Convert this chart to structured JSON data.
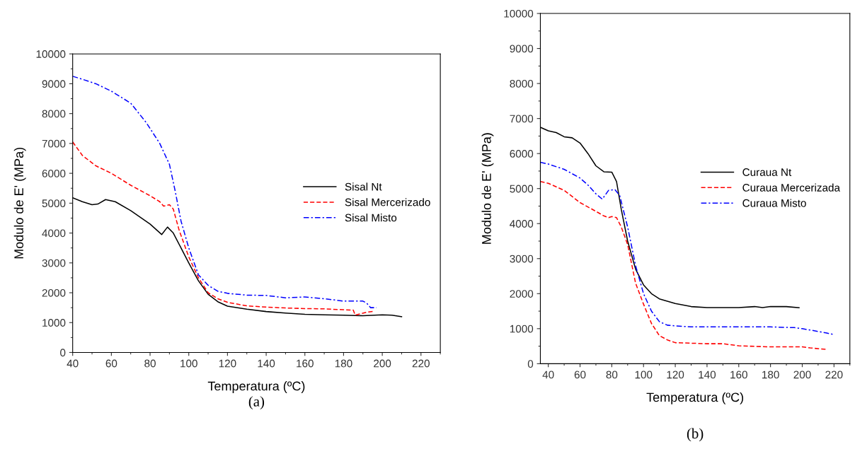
{
  "chart_data": [
    {
      "type": "line",
      "title": "(a)",
      "xlabel": "Temperatura (ºC)",
      "ylabel": "Modulo de E' (MPa)",
      "xlim": [
        40,
        230
      ],
      "xticks": [
        40,
        60,
        80,
        100,
        120,
        140,
        160,
        180,
        200,
        220
      ],
      "ylim": [
        0,
        10000
      ],
      "yticks": [
        0,
        1000,
        2000,
        3000,
        4000,
        5000,
        6000,
        7000,
        8000,
        9000,
        10000
      ],
      "legend": "right",
      "grid": false,
      "series": [
        {
          "name": "Sisal Nt",
          "color": "#000000",
          "line_style": "solid",
          "x": [
            40,
            45,
            50,
            53,
            57,
            62,
            70,
            80,
            86,
            89,
            92,
            100,
            105,
            110,
            115,
            120,
            130,
            140,
            150,
            160,
            170,
            180,
            190,
            200,
            205,
            210
          ],
          "values": [
            5180,
            5050,
            4950,
            4970,
            5120,
            5050,
            4750,
            4300,
            3950,
            4200,
            4000,
            3000,
            2400,
            1950,
            1700,
            1550,
            1450,
            1370,
            1320,
            1280,
            1260,
            1250,
            1230,
            1260,
            1250,
            1200
          ]
        },
        {
          "name": "Sisal Mercerizado",
          "color": "#ff0000",
          "line_style": "dashed",
          "x": [
            40,
            45,
            52,
            60,
            70,
            80,
            85,
            87,
            90,
            92,
            95,
            100,
            105,
            110,
            115,
            120,
            130,
            140,
            150,
            160,
            170,
            180,
            185,
            186,
            189,
            192,
            196
          ],
          "values": [
            7050,
            6600,
            6250,
            6000,
            5600,
            5250,
            5050,
            4900,
            4950,
            4800,
            4100,
            3200,
            2500,
            2000,
            1800,
            1680,
            1560,
            1520,
            1490,
            1470,
            1460,
            1430,
            1420,
            1250,
            1300,
            1350,
            1380
          ]
        },
        {
          "name": "Sisal Misto",
          "color": "#0000ff",
          "line_style": "dashdot",
          "x": [
            40,
            45,
            52,
            60,
            70,
            78,
            85,
            90,
            93,
            96,
            100,
            105,
            110,
            115,
            120,
            130,
            140,
            150,
            160,
            170,
            180,
            190,
            192,
            194,
            197
          ],
          "values": [
            9250,
            9150,
            9000,
            8750,
            8350,
            7700,
            7000,
            6300,
            5400,
            4400,
            3500,
            2600,
            2250,
            2050,
            1980,
            1920,
            1910,
            1830,
            1860,
            1800,
            1720,
            1720,
            1650,
            1500,
            1500
          ]
        }
      ]
    },
    {
      "type": "line",
      "title": "(b)",
      "xlabel": "Temperatura (ºC)",
      "ylabel": "Modulo de E' (MPa)",
      "xlim": [
        35,
        230
      ],
      "xticks": [
        40,
        60,
        80,
        100,
        120,
        140,
        160,
        180,
        200,
        220
      ],
      "ylim": [
        0,
        10000
      ],
      "yticks": [
        0,
        1000,
        2000,
        3000,
        4000,
        5000,
        6000,
        7000,
        8000,
        9000,
        10000
      ],
      "legend": "right",
      "grid": false,
      "series": [
        {
          "name": "Curaua Nt",
          "color": "#000000",
          "line_style": "solid",
          "x": [
            35,
            40,
            45,
            50,
            55,
            60,
            65,
            70,
            75,
            80,
            83,
            86,
            90,
            95,
            100,
            105,
            110,
            120,
            130,
            140,
            160,
            170,
            175,
            180,
            190,
            198
          ],
          "values": [
            6750,
            6650,
            6600,
            6480,
            6450,
            6300,
            6000,
            5650,
            5480,
            5470,
            5200,
            4400,
            3500,
            2700,
            2250,
            2000,
            1850,
            1720,
            1630,
            1600,
            1600,
            1630,
            1600,
            1630,
            1630,
            1600
          ]
        },
        {
          "name": "Curaua Mercerizada",
          "color": "#ff0000",
          "line_style": "dashed",
          "x": [
            35,
            40,
            50,
            60,
            70,
            75,
            78,
            80,
            83,
            86,
            90,
            95,
            100,
            105,
            110,
            115,
            120,
            140,
            150,
            160,
            180,
            200,
            205,
            215
          ],
          "values": [
            5200,
            5150,
            4950,
            4600,
            4350,
            4220,
            4170,
            4200,
            4170,
            3900,
            3400,
            2300,
            1700,
            1150,
            800,
            680,
            600,
            570,
            570,
            510,
            480,
            480,
            450,
            410
          ]
        },
        {
          "name": "Curaua Misto",
          "color": "#0000ff",
          "line_style": "dashdot",
          "x": [
            35,
            40,
            50,
            60,
            65,
            70,
            74,
            78,
            82,
            85,
            90,
            95,
            100,
            105,
            110,
            115,
            120,
            130,
            160,
            180,
            195,
            200,
            210,
            215,
            220
          ],
          "values": [
            5750,
            5700,
            5550,
            5300,
            5100,
            4850,
            4700,
            4950,
            4970,
            4800,
            3900,
            2800,
            2000,
            1500,
            1200,
            1100,
            1080,
            1050,
            1050,
            1050,
            1030,
            1000,
            920,
            880,
            830
          ]
        }
      ]
    }
  ]
}
